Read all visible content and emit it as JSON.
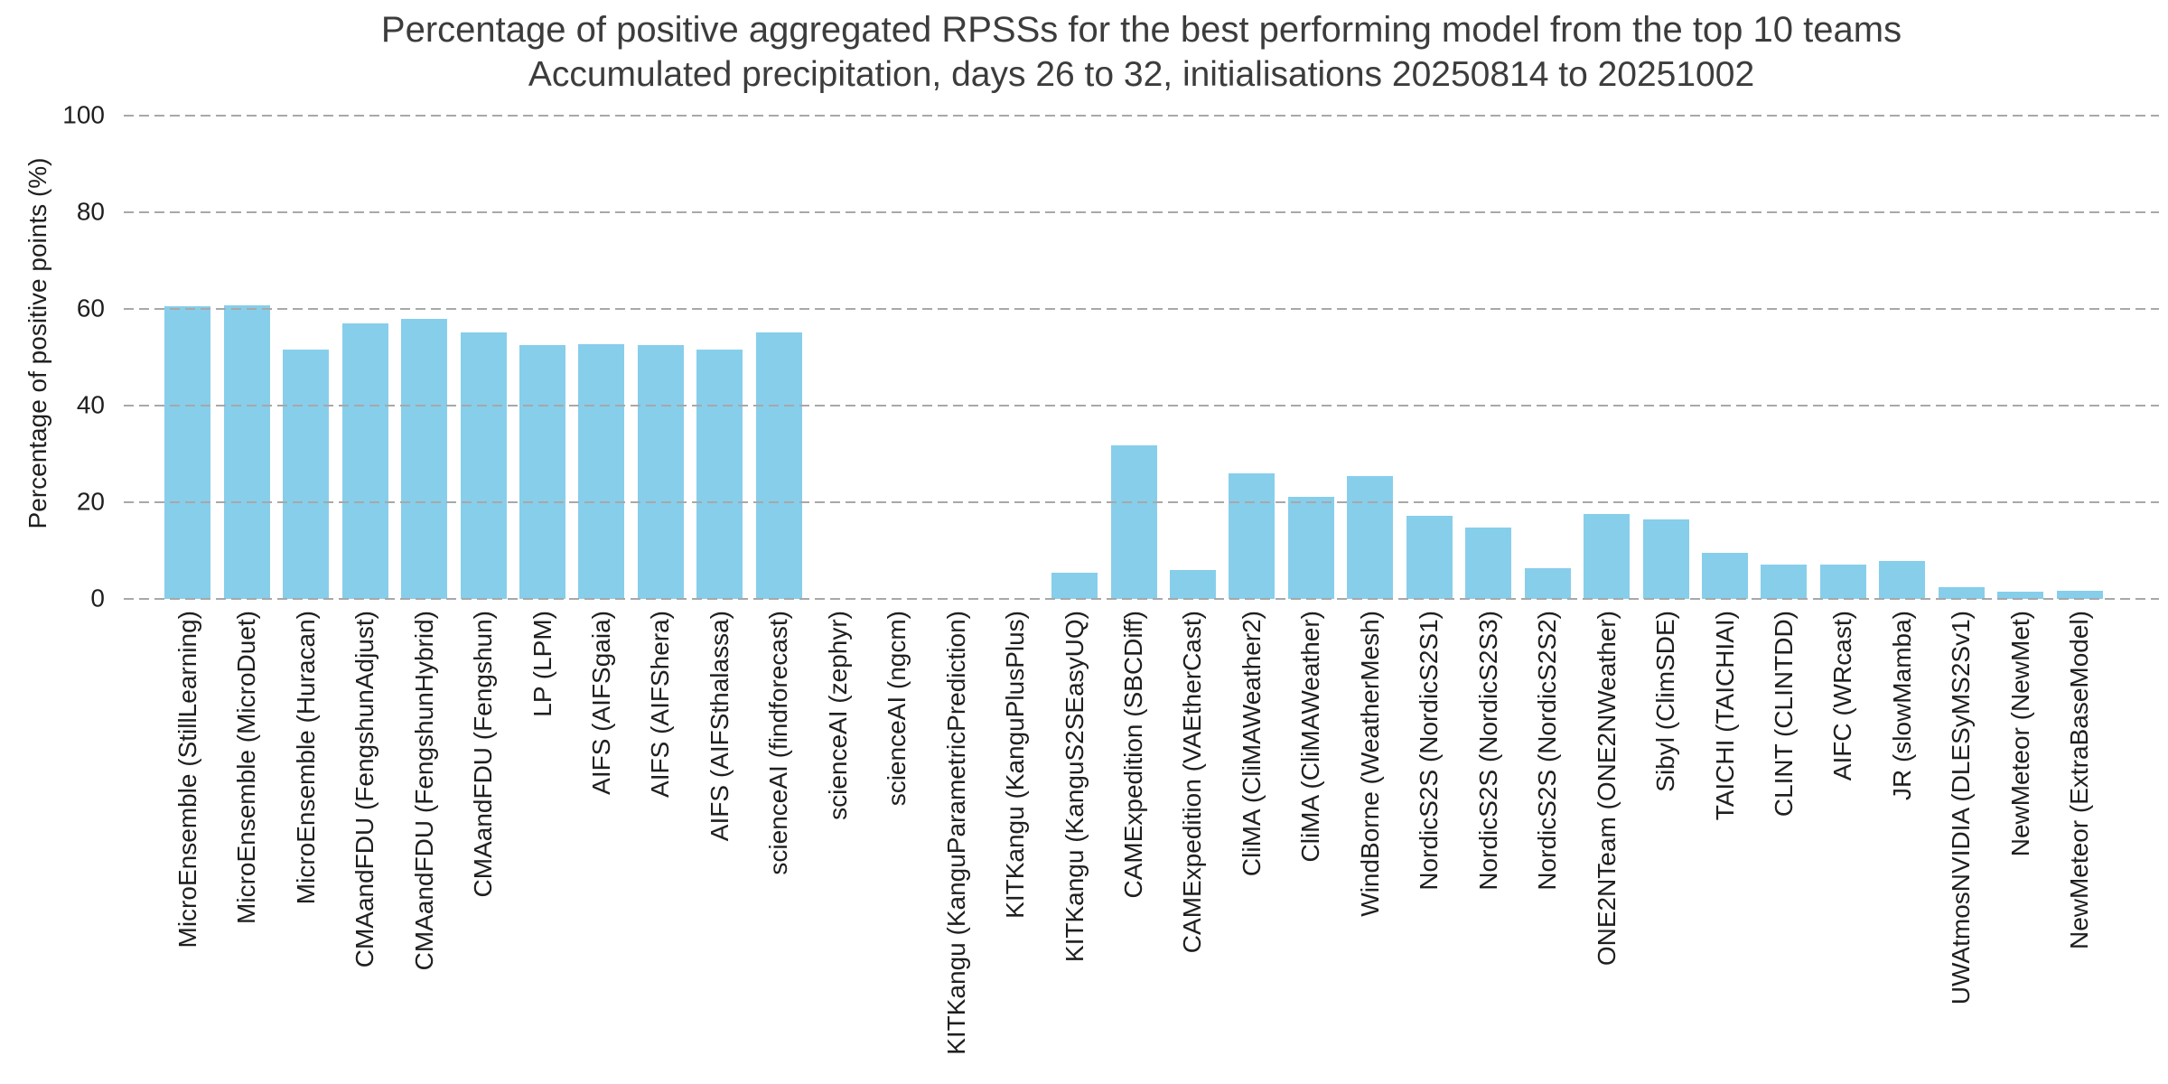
{
  "figure": {
    "title": "Percentage of positive aggregated RPSSs for the best performing model from the top 10 teams",
    "subtitle": "Accumulated precipitation, days 26 to 32, initialisations 20250814 to 20251002"
  },
  "colors": {
    "bar": "#87ceeb",
    "gridline": "#a8a8a8",
    "tick_text": "#1f1f1f",
    "title_text": "#3c3c3c",
    "background": "#ffffff"
  },
  "chart_data": {
    "type": "bar",
    "title": "Percentage of positive aggregated RPSSs for the best performing model from the top 10 teams",
    "subtitle": "Accumulated precipitation, days 26 to 32, initialisations 20250814 to 20251002",
    "xlabel": "",
    "ylabel": "Percentage of positive points (%)",
    "ylim": [
      0,
      100
    ],
    "yticks": [
      0,
      20,
      40,
      60,
      80,
      100
    ],
    "grid": "horizontal-dashed",
    "legend": "none",
    "bar_color": "#87ceeb",
    "categories": [
      "MicroEnsemble (StillLearning)",
      "MicroEnsemble (MicroDuet)",
      "MicroEnsemble (Huracan)",
      "CMAandFDU (FengshunAdjust)",
      "CMAandFDU (FengshunHybrid)",
      "CMAandFDU (Fengshun)",
      "LP (LPM)",
      "AIFS (AIFSgaia)",
      "AIFS (AIFShera)",
      "AIFS (AIFSthalassa)",
      "scienceAI (findforecast)",
      "scienceAI (zephyr)",
      "scienceAI (ngcm)",
      "KITKangu (KanguParametricPrediction)",
      "KITKangu (KanguPlusPlus)",
      "KITKangu (KanguS2SEasyUQ)",
      "CAMExpedition (SBCDiff)",
      "CAMExpedition (VAEtherCast)",
      "CliMA (CliMAWeather2)",
      "CliMA (CliMAWeather)",
      "WindBorne (WeatherMesh)",
      "NordicS2S (NordicS2S1)",
      "NordicS2S (NordicS2S3)",
      "NordicS2S (NordicS2S2)",
      "ONE2NTeam (ONE2NWeather)",
      "Sibyl (ClimSDE)",
      "TAICHI (TAICHIAI)",
      "CLINT (CLINTDD)",
      "AIFC (WRcast)",
      "JR (slowMamba)",
      "UWAtmosNVIDIA (DLESyMS2Sv1)",
      "NewMeteor (NewMet)",
      "NewMeteor (ExtraBaseModel)"
    ],
    "values": [
      60.5,
      60.8,
      51.5,
      57.0,
      57.9,
      55.1,
      52.5,
      52.8,
      52.6,
      51.5,
      55.1,
      0,
      0,
      0,
      0,
      5.5,
      31.8,
      5.9,
      26.0,
      21.2,
      25.4,
      17.2,
      14.8,
      6.4,
      17.6,
      16.4,
      9.5,
      7.1,
      7.1,
      7.9,
      2.4,
      1.5,
      1.6
    ]
  }
}
